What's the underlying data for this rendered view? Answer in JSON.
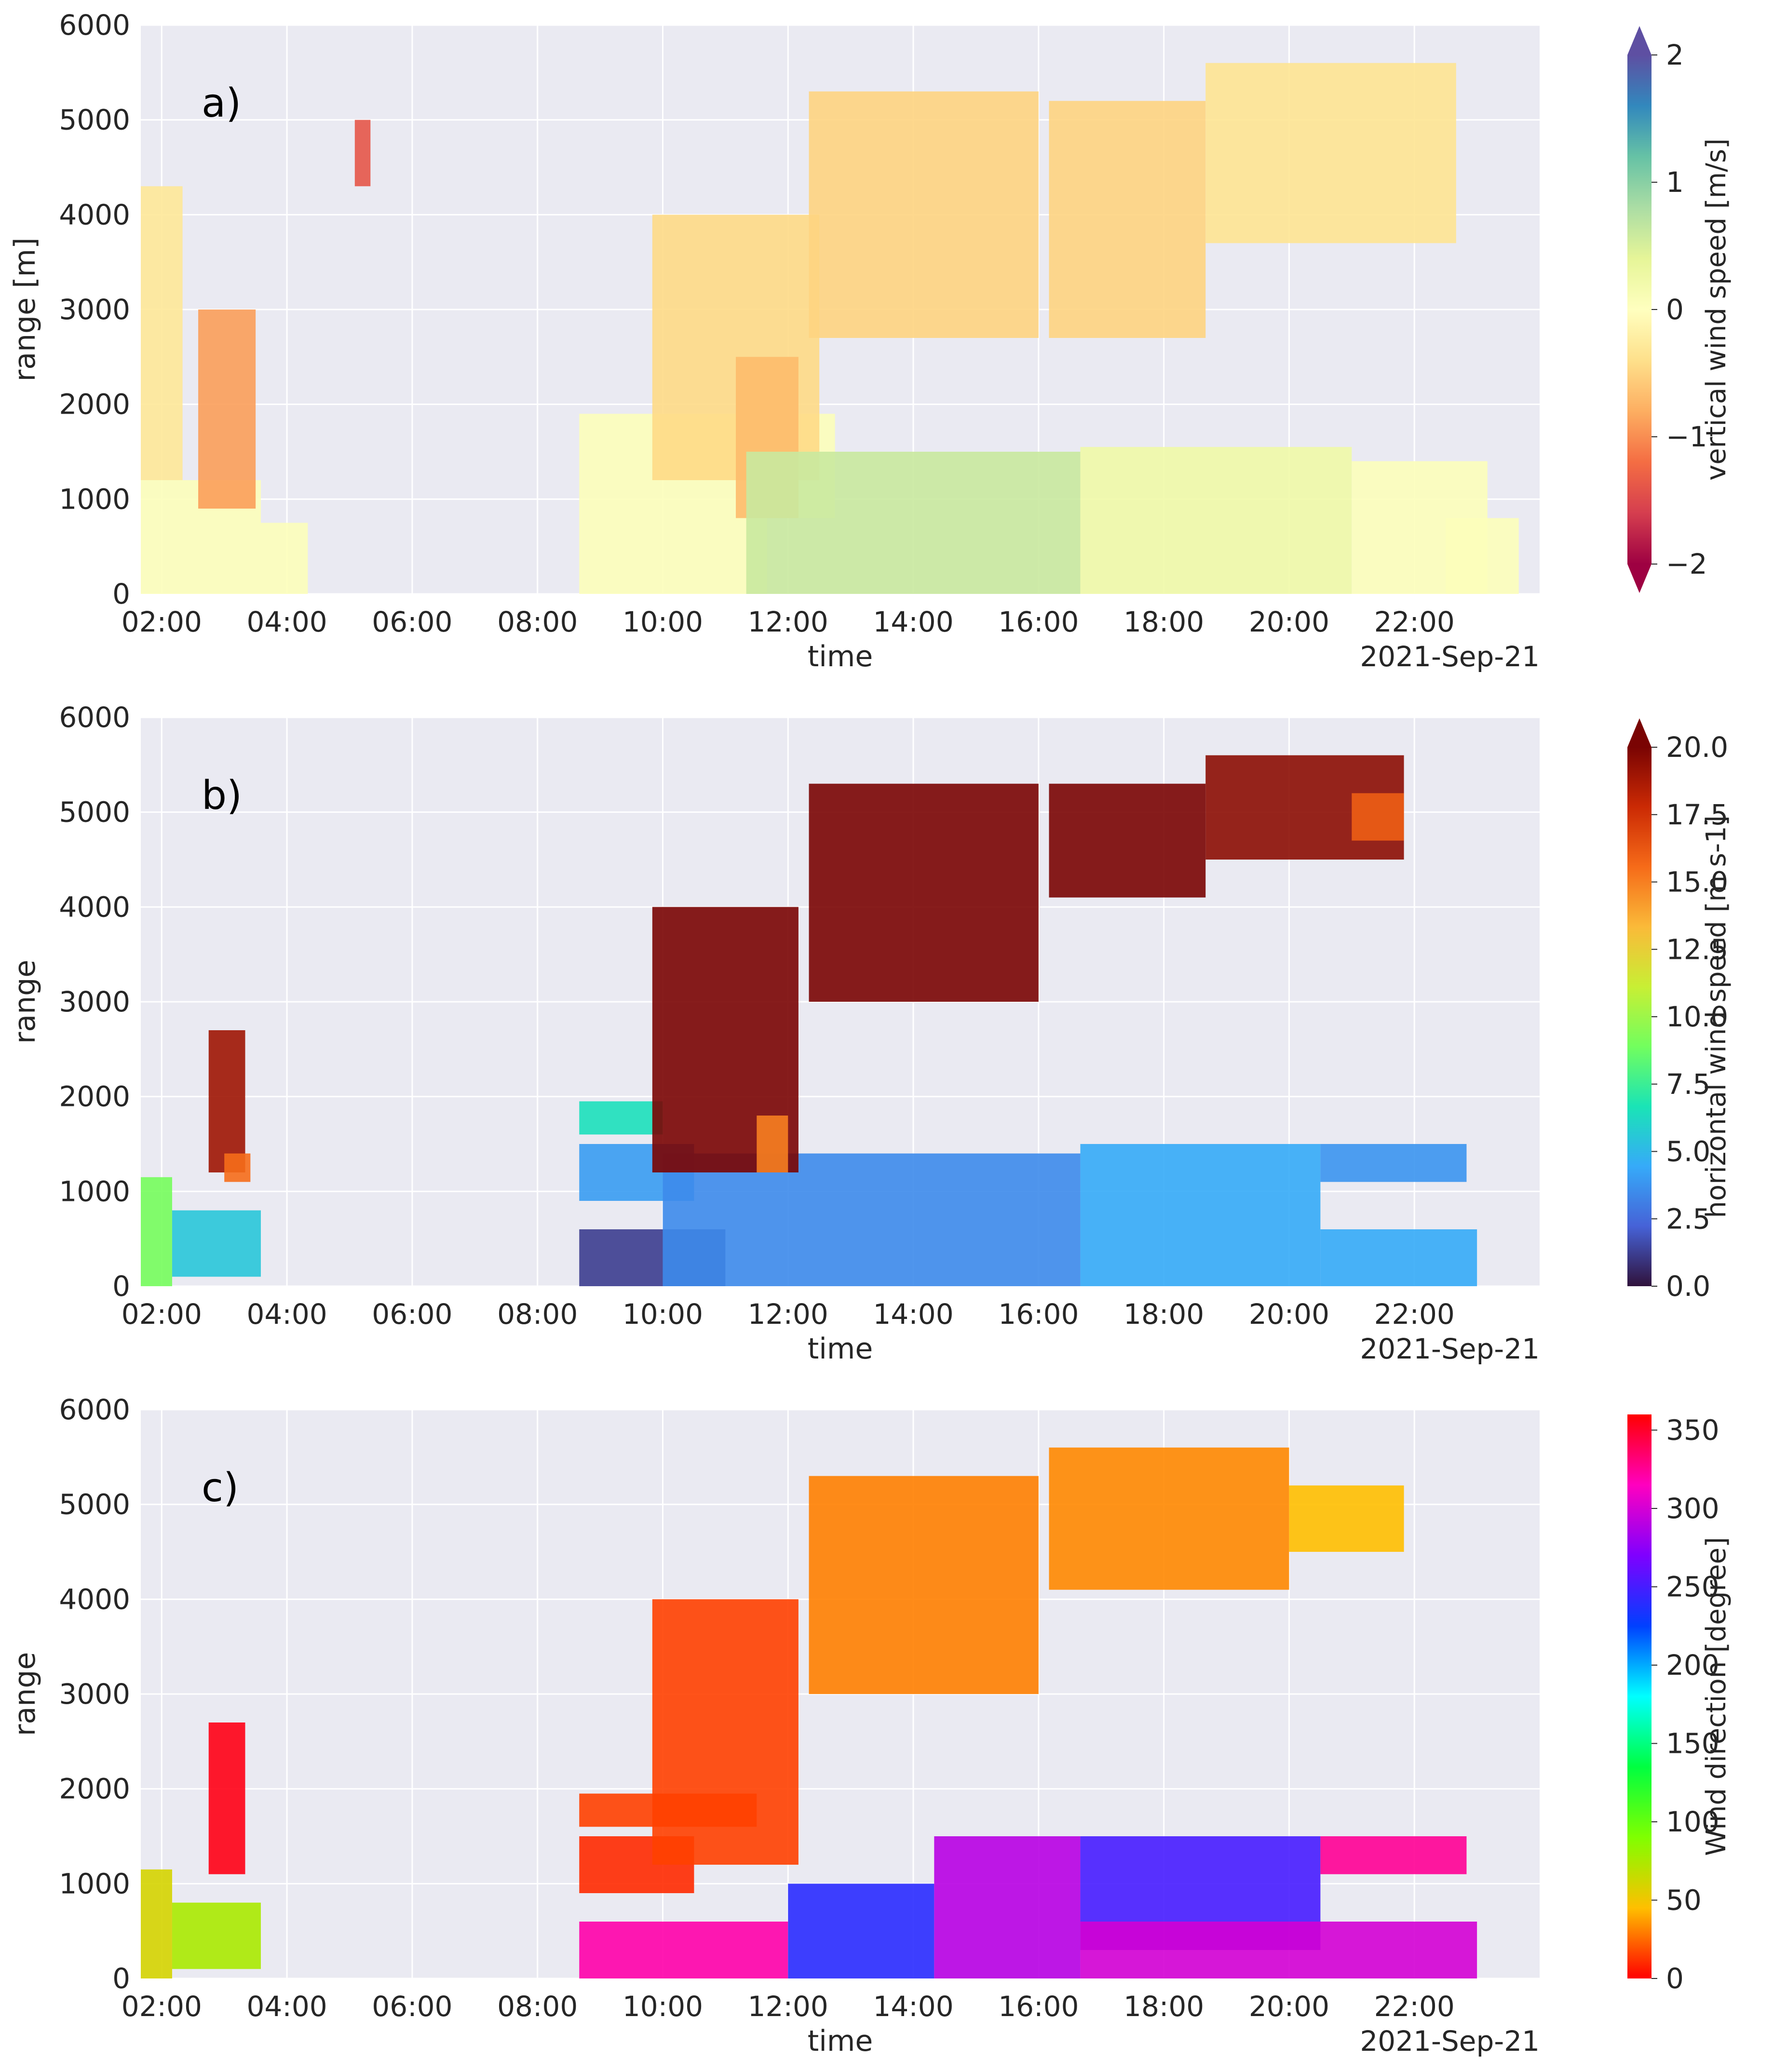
{
  "chart_data": [
    {
      "type": "heatmap",
      "panel_label": "a)",
      "xlabel": "time",
      "ylabel": "range [m]",
      "date_label": "2021-Sep-21",
      "x_range": [
        "01:40",
        "24:00"
      ],
      "x_ticks": [
        "02:00",
        "04:00",
        "06:00",
        "08:00",
        "10:00",
        "12:00",
        "14:00",
        "16:00",
        "18:00",
        "20:00",
        "22:00"
      ],
      "ylim": [
        0,
        6000
      ],
      "y_ticks": [
        "0",
        "1000",
        "2000",
        "3000",
        "4000",
        "5000",
        "6000"
      ],
      "grid": true,
      "colorbar": {
        "label": "vertical wind speed [m/s]",
        "range": [
          -2,
          2
        ],
        "ticks": [
          "−2",
          "−1",
          "0",
          "1",
          "2"
        ],
        "extend": "both",
        "colormap": [
          "#9e0142",
          "#d53e4f",
          "#f46d43",
          "#fdae61",
          "#fee08b",
          "#ffffbf",
          "#e6f598",
          "#abdda4",
          "#66c2a5",
          "#3288bd",
          "#5e4fa2"
        ]
      },
      "regions": [
        {
          "t0": "01:40",
          "t1": "03:35",
          "r0": 0,
          "r1": 1200,
          "value": 0.05
        },
        {
          "t0": "03:35",
          "t1": "04:20",
          "r0": 0,
          "r1": 750,
          "value": 0.05
        },
        {
          "t0": "01:40",
          "t1": "02:20",
          "r0": 1200,
          "r1": 4300,
          "value": -0.3
        },
        {
          "t0": "02:35",
          "t1": "03:30",
          "r0": 900,
          "r1": 3000,
          "value": -0.9
        },
        {
          "t0": "05:05",
          "t1": "05:20",
          "r0": 4300,
          "r1": 5000,
          "value": -1.4
        },
        {
          "t0": "08:40",
          "t1": "11:40",
          "r0": 0,
          "r1": 1900,
          "value": 0.05
        },
        {
          "t0": "11:40",
          "t1": "12:45",
          "r0": 800,
          "r1": 1900,
          "value": 0.05
        },
        {
          "t0": "09:50",
          "t1": "12:30",
          "r0": 1200,
          "r1": 4000,
          "value": -0.45
        },
        {
          "t0": "11:10",
          "t1": "12:10",
          "r0": 800,
          "r1": 2500,
          "value": -0.7
        },
        {
          "t0": "12:20",
          "t1": "16:00",
          "r0": 2700,
          "r1": 5300,
          "value": -0.5
        },
        {
          "t0": "11:20",
          "t1": "16:40",
          "r0": 0,
          "r1": 1500,
          "value": 0.6
        },
        {
          "t0": "16:40",
          "t1": "21:00",
          "r0": 0,
          "r1": 1550,
          "value": 0.25
        },
        {
          "t0": "21:00",
          "t1": "23:10",
          "r0": 0,
          "r1": 1400,
          "value": 0.05
        },
        {
          "t0": "22:30",
          "t1": "23:40",
          "r0": 0,
          "r1": 800,
          "value": 0.05
        },
        {
          "t0": "16:10",
          "t1": "18:40",
          "r0": 2700,
          "r1": 5200,
          "value": -0.5
        },
        {
          "t0": "18:40",
          "t1": "22:40",
          "r0": 3700,
          "r1": 5600,
          "value": -0.35
        }
      ]
    },
    {
      "type": "heatmap",
      "panel_label": "b)",
      "xlabel": "time",
      "ylabel": "range",
      "date_label": "2021-Sep-21",
      "x_range": [
        "01:40",
        "24:00"
      ],
      "x_ticks": [
        "02:00",
        "04:00",
        "06:00",
        "08:00",
        "10:00",
        "12:00",
        "14:00",
        "16:00",
        "18:00",
        "20:00",
        "22:00"
      ],
      "ylim": [
        0,
        6000
      ],
      "y_ticks": [
        "0",
        "1000",
        "2000",
        "3000",
        "4000",
        "5000",
        "6000"
      ],
      "grid": true,
      "colorbar": {
        "label": "horizontal wind speed [m s-1]",
        "range": [
          0,
          20
        ],
        "ticks": [
          "0.0",
          "2.5",
          "5.0",
          "7.5",
          "10.0",
          "12.5",
          "15.0",
          "17.5",
          "20.0"
        ],
        "extend": "max",
        "colormap": [
          "#30123b",
          "#4662d7",
          "#36aaf9",
          "#1ae4b6",
          "#72fe5e",
          "#c8ef34",
          "#faba39",
          "#f66b19",
          "#cb2a04",
          "#7a0403"
        ]
      },
      "regions": [
        {
          "t0": "01:40",
          "t1": "02:10",
          "r0": 0,
          "r1": 1150,
          "value": 9
        },
        {
          "t0": "02:10",
          "t1": "03:35",
          "r0": 100,
          "r1": 800,
          "value": 5.5
        },
        {
          "t0": "02:45",
          "t1": "03:20",
          "r0": 1200,
          "r1": 2700,
          "value": 19
        },
        {
          "t0": "03:00",
          "t1": "03:25",
          "r0": 1100,
          "r1": 1400,
          "value": 15.5
        },
        {
          "t0": "08:40",
          "t1": "10:00",
          "r0": 1600,
          "r1": 1950,
          "value": 6.5
        },
        {
          "t0": "08:40",
          "t1": "10:30",
          "r0": 900,
          "r1": 1500,
          "value": 4
        },
        {
          "t0": "08:40",
          "t1": "11:00",
          "r0": 0,
          "r1": 600,
          "value": 1.2
        },
        {
          "t0": "10:00",
          "t1": "16:40",
          "r0": 0,
          "r1": 1400,
          "value": 3.5
        },
        {
          "t0": "16:40",
          "t1": "20:30",
          "r0": 0,
          "r1": 1500,
          "value": 4.5
        },
        {
          "t0": "20:30",
          "t1": "23:00",
          "r0": 0,
          "r1": 600,
          "value": 4.5
        },
        {
          "t0": "20:30",
          "t1": "22:50",
          "r0": 1100,
          "r1": 1500,
          "value": 3.8
        },
        {
          "t0": "09:50",
          "t1": "12:10",
          "r0": 1200,
          "r1": 4000,
          "value": 20
        },
        {
          "t0": "11:30",
          "t1": "12:00",
          "r0": 1200,
          "r1": 1800,
          "value": 15
        },
        {
          "t0": "12:20",
          "t1": "16:00",
          "r0": 3000,
          "r1": 5300,
          "value": 20
        },
        {
          "t0": "16:10",
          "t1": "18:40",
          "r0": 4100,
          "r1": 5300,
          "value": 20
        },
        {
          "t0": "18:40",
          "t1": "21:50",
          "r0": 4500,
          "r1": 5600,
          "value": 19.5
        },
        {
          "t0": "21:00",
          "t1": "21:50",
          "r0": 4700,
          "r1": 5200,
          "value": 16
        }
      ]
    },
    {
      "type": "heatmap",
      "panel_label": "c)",
      "xlabel": "time",
      "ylabel": "range",
      "date_label": "2021-Sep-21",
      "x_range": [
        "01:40",
        "24:00"
      ],
      "x_ticks": [
        "02:00",
        "04:00",
        "06:00",
        "08:00",
        "10:00",
        "12:00",
        "14:00",
        "16:00",
        "18:00",
        "20:00",
        "22:00"
      ],
      "ylim": [
        0,
        6000
      ],
      "y_ticks": [
        "0",
        "1000",
        "2000",
        "3000",
        "4000",
        "5000",
        "6000"
      ],
      "grid": true,
      "colorbar": {
        "label": "Wind direction [degree]",
        "range": [
          0,
          360
        ],
        "ticks": [
          "0",
          "50",
          "100",
          "150",
          "200",
          "250",
          "300",
          "350"
        ],
        "extend": "neither",
        "colormap": [
          "#ff0000",
          "#ffbf00",
          "#80ff00",
          "#00ff40",
          "#00ffff",
          "#0040ff",
          "#7f00ff",
          "#ff00bf",
          "#ff0000"
        ]
      },
      "regions": [
        {
          "t0": "01:40",
          "t1": "02:10",
          "r0": 0,
          "r1": 1150,
          "value": 60
        },
        {
          "t0": "02:10",
          "t1": "03:35",
          "r0": 100,
          "r1": 800,
          "value": 75
        },
        {
          "t0": "02:45",
          "t1": "03:20",
          "r0": 1100,
          "r1": 2700,
          "value": 355
        },
        {
          "t0": "08:40",
          "t1": "11:30",
          "r0": 1600,
          "r1": 1950,
          "value": 15
        },
        {
          "t0": "08:40",
          "t1": "10:30",
          "r0": 900,
          "r1": 1500,
          "value": 10
        },
        {
          "t0": "08:40",
          "t1": "12:00",
          "r0": 0,
          "r1": 600,
          "value": 320
        },
        {
          "t0": "09:50",
          "t1": "12:10",
          "r0": 1200,
          "r1": 4000,
          "value": 15
        },
        {
          "t0": "12:00",
          "t1": "14:20",
          "r0": 0,
          "r1": 1000,
          "value": 240
        },
        {
          "t0": "14:20",
          "t1": "16:40",
          "r0": 0,
          "r1": 1500,
          "value": 290
        },
        {
          "t0": "16:40",
          "t1": "20:30",
          "r0": 300,
          "r1": 1500,
          "value": 250
        },
        {
          "t0": "16:40",
          "t1": "23:00",
          "r0": 0,
          "r1": 600,
          "value": 300
        },
        {
          "t0": "20:30",
          "t1": "22:50",
          "r0": 1100,
          "r1": 1500,
          "value": 325
        },
        {
          "t0": "12:20",
          "t1": "16:00",
          "r0": 3000,
          "r1": 5300,
          "value": 30
        },
        {
          "t0": "16:10",
          "t1": "20:00",
          "r0": 4100,
          "r1": 5600,
          "value": 32
        },
        {
          "t0": "20:00",
          "t1": "21:50",
          "r0": 4500,
          "r1": 5200,
          "value": 45
        }
      ]
    }
  ]
}
